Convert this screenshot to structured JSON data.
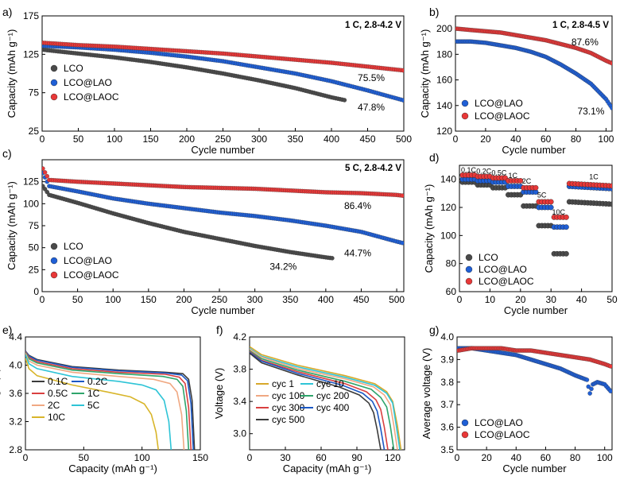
{
  "colors": {
    "LCO": "#4a4a4a",
    "LCO@LAO": "#1f5fd6",
    "LCO@LAOC": "#e83838"
  },
  "chart_data": [
    {
      "id": "a",
      "panel": "a)",
      "type": "scatter",
      "condition": "1 C, 2.8-4.2 V",
      "xlabel": "Cycle number",
      "ylabel": "Capacity (mAh g⁻¹)",
      "xlim": [
        0,
        500
      ],
      "ylim": [
        25,
        175
      ],
      "xticks": [
        0,
        50,
        100,
        150,
        200,
        250,
        300,
        350,
        400,
        450,
        500
      ],
      "yticks": [
        25,
        75,
        125,
        175
      ],
      "legend": "bottom-left",
      "series": [
        {
          "name": "LCO",
          "color": "LCO",
          "x": [
            1,
            50,
            100,
            150,
            200,
            250,
            300,
            350,
            400,
            420
          ],
          "y": [
            131,
            126,
            121,
            115,
            108,
            100,
            91,
            81,
            69,
            65
          ]
        },
        {
          "name": "LCO@LAO",
          "color": "LCO@LAO",
          "x": [
            1,
            50,
            100,
            150,
            200,
            250,
            300,
            350,
            400,
            450,
            500
          ],
          "y": [
            136,
            134,
            131,
            127,
            122,
            116,
            108,
            100,
            90,
            78,
            65
          ]
        },
        {
          "name": "LCO@LAOC",
          "color": "LCO@LAOC",
          "x": [
            1,
            50,
            100,
            150,
            200,
            250,
            300,
            350,
            400,
            450,
            500
          ],
          "y": [
            140,
            137,
            135,
            132,
            129,
            126,
            122,
            118,
            114,
            109,
            104
          ]
        }
      ],
      "annotations": [
        {
          "text": "75.5%",
          "x": 455,
          "y": 90
        },
        {
          "text": "47.8%",
          "x": 455,
          "y": 52
        }
      ]
    },
    {
      "id": "b",
      "panel": "b)",
      "type": "scatter",
      "condition": "1 C, 2.8-4.5 V",
      "xlabel": "Cycle number",
      "ylabel": "Capacity (mAh g⁻¹)",
      "xlim": [
        0,
        104
      ],
      "ylim": [
        120,
        210
      ],
      "xticks": [
        0,
        20,
        40,
        60,
        80,
        100
      ],
      "yticks": [
        120,
        140,
        160,
        180,
        200
      ],
      "legend": "bottom-left",
      "series": [
        {
          "name": "LCO@LAO",
          "color": "LCO@LAO",
          "x": [
            1,
            10,
            20,
            30,
            40,
            50,
            60,
            70,
            80,
            90,
            100,
            104
          ],
          "y": [
            190,
            190,
            189,
            187,
            185,
            182,
            178,
            172,
            165,
            157,
            145,
            138
          ]
        },
        {
          "name": "LCO@LAOC",
          "color": "LCO@LAOC",
          "x": [
            1,
            10,
            20,
            30,
            40,
            50,
            60,
            70,
            80,
            90,
            100,
            104
          ],
          "y": [
            200,
            199,
            198,
            197,
            195,
            193,
            191,
            188,
            185,
            181,
            175,
            173
          ]
        }
      ],
      "annotations": [
        {
          "text": "87.6%",
          "x": 86,
          "y": 187
        },
        {
          "text": "73.1%",
          "x": 90,
          "y": 133
        }
      ]
    },
    {
      "id": "c",
      "panel": "c)",
      "type": "scatter",
      "condition": "5 C, 2.8-4.2 V",
      "xlabel": "Cycle number",
      "ylabel": "Capacity (mAh g⁻¹)",
      "xlim": [
        0,
        510
      ],
      "ylim": [
        0,
        150
      ],
      "xticks": [
        0,
        50,
        100,
        150,
        200,
        250,
        300,
        350,
        400,
        450,
        500
      ],
      "yticks": [
        0,
        25,
        50,
        75,
        100,
        125
      ],
      "legend": "bottom-left",
      "series": [
        {
          "name": "LCO",
          "color": "LCO",
          "x": [
            1,
            10,
            50,
            100,
            150,
            200,
            250,
            300,
            350,
            400,
            410
          ],
          "y": [
            120,
            110,
            101,
            89,
            78,
            68,
            60,
            52,
            45,
            39,
            38
          ]
        },
        {
          "name": "LCO@LAO",
          "color": "LCO@LAO",
          "x": [
            1,
            10,
            50,
            100,
            150,
            200,
            250,
            300,
            350,
            400,
            450,
            500,
            510
          ],
          "y": [
            135,
            120,
            114,
            106,
            100,
            95,
            90,
            86,
            81,
            75,
            68,
            57,
            55
          ]
        },
        {
          "name": "LCO@LAOC",
          "color": "LCO@LAOC",
          "x": [
            1,
            10,
            50,
            100,
            150,
            200,
            250,
            300,
            350,
            400,
            450,
            500,
            510
          ],
          "y": [
            140,
            127,
            125,
            123,
            121,
            119,
            118,
            117,
            115,
            113,
            112,
            110,
            109
          ]
        }
      ],
      "annotations": [
        {
          "text": "86.4%",
          "x": 445,
          "y": 94
        },
        {
          "text": "44.7%",
          "x": 445,
          "y": 40
        },
        {
          "text": "34.2%",
          "x": 340,
          "y": 25
        }
      ]
    },
    {
      "id": "d",
      "panel": "d)",
      "type": "scatter",
      "xlabel": "Cycle number",
      "ylabel": "Capacity (mAh g⁻¹)",
      "xlim": [
        0,
        50
      ],
      "ylim": [
        60,
        150
      ],
      "xticks": [
        0,
        10,
        20,
        30,
        40,
        50
      ],
      "yticks": [
        60,
        80,
        100,
        120,
        140
      ],
      "legend": "bottom-left",
      "rates": [
        "0.1C",
        "0.2C",
        "0.5C",
        "1C",
        "2C",
        "5C",
        "10C",
        "1C"
      ],
      "rate_label_positions": [
        [
          3,
          145
        ],
        [
          8,
          144
        ],
        [
          13,
          143
        ],
        [
          17.5,
          141
        ],
        [
          22,
          137
        ],
        [
          27,
          127
        ],
        [
          32.5,
          115
        ],
        [
          44,
          140
        ]
      ],
      "segments": [
        [
          1,
          5
        ],
        [
          6,
          10
        ],
        [
          11,
          15
        ],
        [
          16,
          20
        ],
        [
          21,
          25
        ],
        [
          26,
          30
        ],
        [
          31,
          35
        ],
        [
          36,
          50
        ]
      ],
      "series": [
        {
          "name": "LCO",
          "color": "LCO",
          "values": [
            138,
            136,
            134,
            129,
            121,
            107,
            87,
            124
          ]
        },
        {
          "name": "LCO@LAO",
          "color": "LCO@LAO",
          "values": [
            140,
            139,
            138,
            135,
            131,
            120,
            106,
            135
          ]
        },
        {
          "name": "LCO@LAOC",
          "color": "LCO@LAOC",
          "values": [
            143,
            142,
            141,
            139,
            134,
            124,
            113,
            137
          ]
        }
      ]
    },
    {
      "id": "e",
      "panel": "e)",
      "type": "line",
      "xlabel": "Capacity (mAh g⁻¹)",
      "ylabel": "Voltage (V)",
      "xlim": [
        0,
        150
      ],
      "ylim": [
        2.8,
        4.4
      ],
      "xticks": [
        0,
        50,
        100,
        150
      ],
      "yticks": [
        2.8,
        3.2,
        3.6,
        4.0,
        4.4
      ],
      "legend": "bottom-left",
      "series": [
        {
          "name": "0.1C",
          "color": "#3b3b3b",
          "x": [
            0,
            3,
            10,
            40,
            80,
            120,
            135,
            140,
            143,
            145
          ],
          "y": [
            4.2,
            4.14,
            4.08,
            3.98,
            3.93,
            3.9,
            3.88,
            3.8,
            3.5,
            2.8
          ]
        },
        {
          "name": "0.2C",
          "color": "#1b58c4",
          "x": [
            0,
            3,
            10,
            40,
            80,
            120,
            134,
            139,
            142,
            144
          ],
          "y": [
            4.2,
            4.13,
            4.07,
            3.97,
            3.92,
            3.89,
            3.86,
            3.78,
            3.45,
            2.8
          ]
        },
        {
          "name": "0.5C",
          "color": "#d94040",
          "x": [
            0,
            3,
            10,
            40,
            80,
            120,
            132,
            137,
            140,
            142
          ],
          "y": [
            4.19,
            4.11,
            4.05,
            3.95,
            3.9,
            3.87,
            3.83,
            3.74,
            3.4,
            2.8
          ]
        },
        {
          "name": "1C",
          "color": "#2ea56b",
          "x": [
            0,
            3,
            10,
            40,
            80,
            118,
            130,
            135,
            138,
            140
          ],
          "y": [
            4.18,
            4.09,
            4.03,
            3.93,
            3.88,
            3.84,
            3.8,
            3.7,
            3.35,
            2.8
          ]
        },
        {
          "name": "2C",
          "color": "#f0a882",
          "x": [
            0,
            3,
            10,
            40,
            80,
            110,
            124,
            130,
            134,
            136
          ],
          "y": [
            4.17,
            4.06,
            4.0,
            3.9,
            3.84,
            3.8,
            3.74,
            3.62,
            3.3,
            2.8
          ]
        },
        {
          "name": "5C",
          "color": "#2ec4d6",
          "x": [
            0,
            3,
            10,
            40,
            80,
            100,
            112,
            119,
            123,
            125
          ],
          "y": [
            4.15,
            4.02,
            3.95,
            3.84,
            3.77,
            3.72,
            3.65,
            3.5,
            3.2,
            2.8
          ]
        },
        {
          "name": "10C",
          "color": "#d8b52a",
          "x": [
            0,
            3,
            10,
            40,
            70,
            90,
            102,
            108,
            112,
            114
          ],
          "y": [
            4.1,
            3.95,
            3.85,
            3.72,
            3.62,
            3.55,
            3.45,
            3.3,
            3.05,
            2.8
          ]
        }
      ]
    },
    {
      "id": "f",
      "panel": "f)",
      "type": "line",
      "xlabel": "Capacity (mAh g⁻¹)",
      "ylabel": "Voltage (V)",
      "xlim": [
        0,
        130
      ],
      "ylim": [
        2.8,
        4.2
      ],
      "xticks": [
        0,
        30,
        60,
        90,
        120
      ],
      "yticks": [
        3.0,
        3.4,
        3.8,
        4.2
      ],
      "legend": "bottom-left",
      "series": [
        {
          "name": "cyc 1",
          "color": "#d8a82a",
          "x": [
            0,
            10,
            40,
            80,
            105,
            115,
            120,
            124,
            127
          ],
          "y": [
            4.08,
            3.98,
            3.85,
            3.72,
            3.62,
            3.52,
            3.4,
            3.1,
            2.8
          ]
        },
        {
          "name": "cyc 10",
          "color": "#2ec4d6",
          "x": [
            0,
            10,
            40,
            80,
            105,
            115,
            120,
            123,
            126
          ],
          "y": [
            4.06,
            3.96,
            3.83,
            3.7,
            3.6,
            3.5,
            3.38,
            3.1,
            2.8
          ]
        },
        {
          "name": "cyc 100",
          "color": "#f0a882",
          "x": [
            0,
            10,
            40,
            80,
            104,
            113,
            118,
            121,
            124
          ],
          "y": [
            4.05,
            3.95,
            3.81,
            3.68,
            3.58,
            3.48,
            3.36,
            3.1,
            2.8
          ]
        },
        {
          "name": "cyc 200",
          "color": "#2ea56b",
          "x": [
            0,
            10,
            40,
            80,
            102,
            110,
            115,
            118,
            121
          ],
          "y": [
            4.03,
            3.93,
            3.79,
            3.65,
            3.55,
            3.45,
            3.33,
            3.1,
            2.8
          ]
        },
        {
          "name": "cyc 300",
          "color": "#d94040",
          "x": [
            0,
            10,
            40,
            80,
            98,
            106,
            110,
            113,
            116
          ],
          "y": [
            4.02,
            3.91,
            3.77,
            3.62,
            3.52,
            3.42,
            3.3,
            3.08,
            2.8
          ]
        },
        {
          "name": "cyc 400",
          "color": "#1b58c4",
          "x": [
            0,
            10,
            40,
            78,
            95,
            103,
            107,
            110,
            113
          ],
          "y": [
            4.01,
            3.9,
            3.75,
            3.6,
            3.5,
            3.4,
            3.28,
            3.06,
            2.8
          ]
        },
        {
          "name": "cyc 500",
          "color": "#3b3b3b",
          "x": [
            0,
            10,
            40,
            75,
            92,
            100,
            104,
            107,
            110
          ],
          "y": [
            4.0,
            3.88,
            3.73,
            3.58,
            3.48,
            3.38,
            3.26,
            3.05,
            2.8
          ]
        }
      ]
    },
    {
      "id": "g",
      "panel": "g)",
      "type": "scatter",
      "xlabel": "Cycle number",
      "ylabel": "Average voltage (V)",
      "xlim": [
        0,
        105
      ],
      "ylim": [
        3.5,
        4.0
      ],
      "xticks": [
        0,
        20,
        40,
        60,
        80,
        100
      ],
      "yticks": [
        3.5,
        3.6,
        3.7,
        3.8,
        3.9,
        4.0
      ],
      "legend": "bottom-left",
      "series": [
        {
          "name": "LCO@LAO",
          "color": "LCO@LAO",
          "x": [
            1,
            10,
            20,
            30,
            40,
            50,
            60,
            70,
            80,
            88,
            90,
            92,
            95,
            100,
            104
          ],
          "y": [
            3.95,
            3.95,
            3.94,
            3.93,
            3.92,
            3.9,
            3.88,
            3.86,
            3.83,
            3.81,
            3.75,
            3.79,
            3.8,
            3.79,
            3.76
          ]
        },
        {
          "name": "LCO@LAOC",
          "color": "LCO@LAOC",
          "x": [
            1,
            10,
            20,
            30,
            40,
            50,
            60,
            70,
            80,
            90,
            100,
            104
          ],
          "y": [
            3.94,
            3.95,
            3.95,
            3.95,
            3.94,
            3.94,
            3.93,
            3.92,
            3.91,
            3.9,
            3.88,
            3.87
          ]
        }
      ]
    }
  ]
}
